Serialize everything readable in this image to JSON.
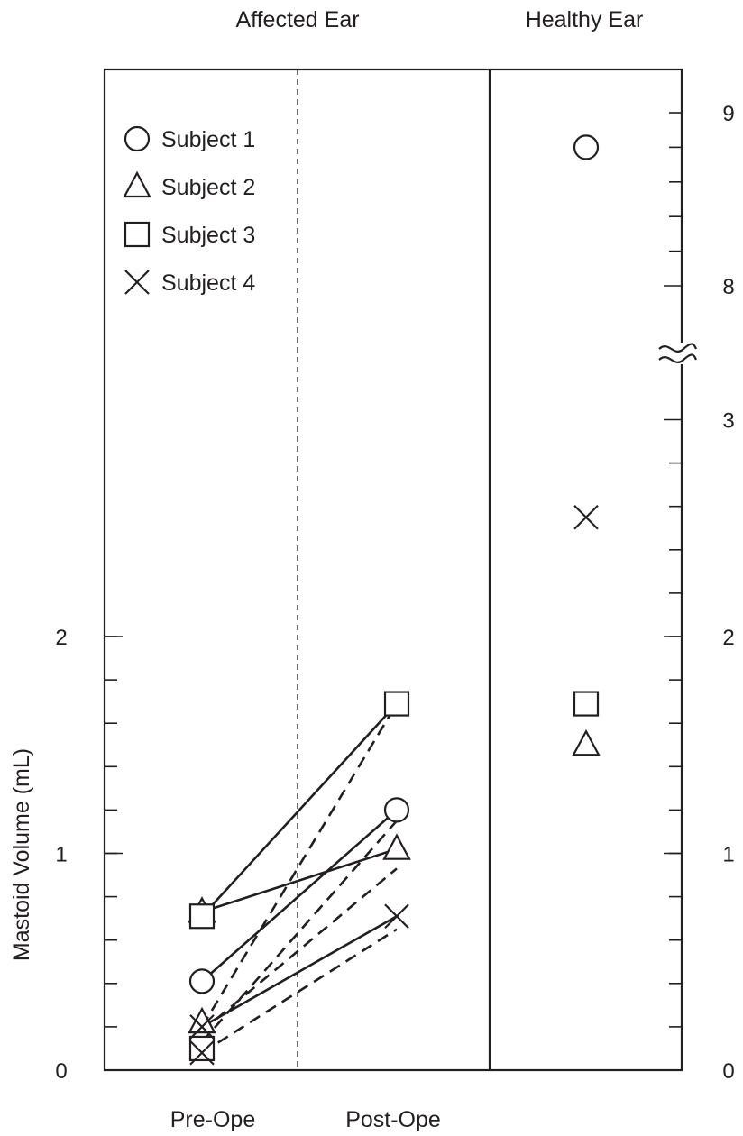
{
  "chart_data": {
    "type": "scatter",
    "title": "",
    "panel_labels": {
      "affected": "Affected Ear",
      "healthy": "Healthy Ear"
    },
    "ylabel": "Mastoid  Volume (mL)",
    "xcategories": [
      "Pre-Ope",
      "Post-Ope"
    ],
    "ylim": [
      0,
      9
    ],
    "axis_break": {
      "from": 3,
      "to": 8
    },
    "left_ticks": [
      "0",
      "1",
      "2"
    ],
    "right_ticks": [
      "0",
      "1",
      "2",
      "3",
      "8",
      "9"
    ],
    "legend": {
      "position": "top-left",
      "entries": [
        {
          "marker": "circle",
          "label": "Subject 1"
        },
        {
          "marker": "triangle",
          "label": "Subject 2"
        },
        {
          "marker": "square",
          "label": "Subject 3"
        },
        {
          "marker": "x",
          "label": "Subject 4"
        }
      ]
    },
    "series": [
      {
        "name": "Subject 1",
        "marker": "circle",
        "pre": 0.41,
        "post": 1.2,
        "healthy": 8.8
      },
      {
        "name": "Subject 2",
        "marker": "triangle",
        "pre": 0.73,
        "post": 1.02,
        "healthy": 1.5
      },
      {
        "name": "Subject 3",
        "marker": "square",
        "pre": 0.71,
        "post": 1.69,
        "healthy": 1.69
      },
      {
        "name": "Subject 4",
        "marker": "x",
        "pre": 0.2,
        "post": 0.71,
        "healthy": 2.55
      }
    ],
    "dashed_connections": [
      {
        "pre": 0.2,
        "post": 1.69
      },
      {
        "pre": 0.13,
        "post": 1.15
      },
      {
        "pre": 0.18,
        "post": 0.93
      },
      {
        "pre": 0.08,
        "post": 0.65
      }
    ]
  }
}
